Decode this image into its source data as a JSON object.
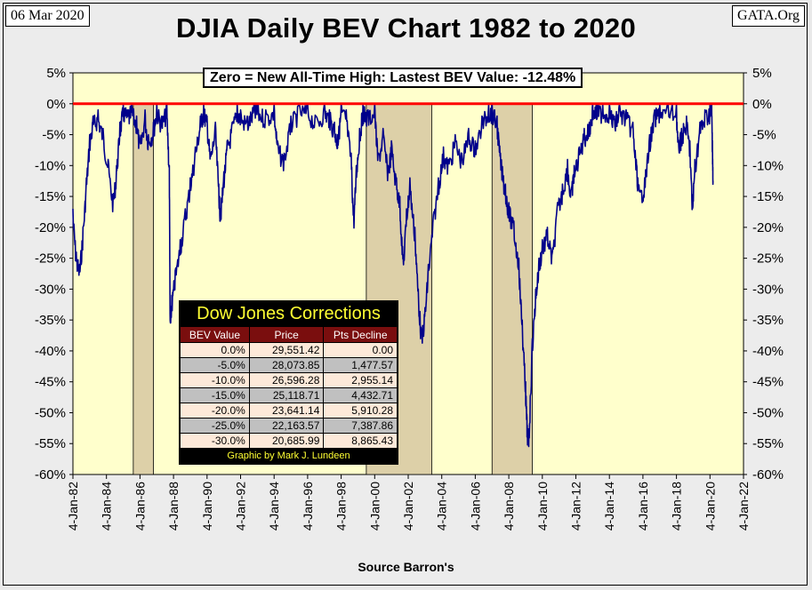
{
  "header": {
    "date": "06 Mar 2020",
    "site": "GATA.Org",
    "title": "DJIA Daily BEV Chart 1982 to 2020"
  },
  "annotation": "Zero = New All-Time High: Lastest BEV Value: -12.48%",
  "source": "Source Barron's",
  "colors": {
    "plot_bg": "#ffffcc",
    "line": "#00008b",
    "zero_line": "#ff0000",
    "shade": "#ddd0a8",
    "table_header": "#7a0e0e",
    "table_title": "#ffff33"
  },
  "corrections_table": {
    "title": "Dow Jones Corrections",
    "headers": [
      "BEV Value",
      "Price",
      "Pts Decline"
    ],
    "rows": [
      [
        "0.0%",
        "29,551.42",
        "0.00"
      ],
      [
        "-5.0%",
        "28,073.85",
        "1,477.57"
      ],
      [
        "-10.0%",
        "26,596.28",
        "2,955.14"
      ],
      [
        "-15.0%",
        "25,118.71",
        "4,432.71"
      ],
      [
        "-20.0%",
        "23,641.14",
        "5,910.28"
      ],
      [
        "-25.0%",
        "22,163.57",
        "7,387.86"
      ],
      [
        "-30.0%",
        "20,685.99",
        "8,865.43"
      ]
    ],
    "credit": "Graphic by Mark J. Lundeen"
  },
  "chart_data": {
    "type": "line",
    "title": "DJIA Daily BEV Chart 1982 to 2020",
    "xlabel": "Source Barron's",
    "ylabel": "",
    "ylim": [
      -60,
      5
    ],
    "xlim": [
      1982.0,
      2022.0
    ],
    "y_ticks": [
      "5%",
      "0%",
      "-5%",
      "-10%",
      "-15%",
      "-20%",
      "-25%",
      "-30%",
      "-35%",
      "-40%",
      "-45%",
      "-50%",
      "-55%",
      "-60%"
    ],
    "x_ticks": [
      "4-Jan-82",
      "4-Jan-84",
      "4-Jan-86",
      "4-Jan-88",
      "4-Jan-90",
      "4-Jan-92",
      "4-Jan-94",
      "4-Jan-96",
      "4-Jan-98",
      "4-Jan-00",
      "4-Jan-02",
      "4-Jan-04",
      "4-Jan-06",
      "4-Jan-08",
      "4-Jan-10",
      "4-Jan-12",
      "4-Jan-14",
      "4-Jan-16",
      "4-Jan-18",
      "4-Jan-20",
      "4-Jan-22"
    ],
    "shaded_periods": [
      [
        1985.6,
        1986.8
      ],
      [
        1999.5,
        2003.4
      ],
      [
        2007.0,
        2009.4
      ]
    ],
    "reference_line": 0,
    "series": [
      {
        "x": [
          1982.0,
          1982.2,
          1982.4,
          1982.6,
          1982.8,
          1983.0,
          1983.2,
          1983.5,
          1983.8,
          1984.1,
          1984.4,
          1984.6,
          1984.8,
          1985.0,
          1985.3,
          1985.5,
          1985.8,
          1986.0,
          1986.3,
          1986.5,
          1986.8,
          1987.0,
          1987.3,
          1987.6,
          1987.75,
          1987.8,
          1987.9,
          1988.1,
          1988.4,
          1988.7,
          1989.0,
          1989.3,
          1989.6,
          1989.8,
          1990.0,
          1990.2,
          1990.5,
          1990.7,
          1990.8,
          1991.0,
          1991.2,
          1991.5,
          1991.8,
          1992.0,
          1992.4,
          1992.8,
          1993.0,
          1993.5,
          1994.0,
          1994.2,
          1994.6,
          1995.0,
          1995.5,
          1996.0,
          1996.5,
          1997.0,
          1997.3,
          1997.6,
          1997.8,
          1998.0,
          1998.3,
          1998.6,
          1998.75,
          1998.9,
          1999.1,
          1999.3,
          1999.6,
          2000.0,
          2000.2,
          2000.5,
          2000.8,
          2001.0,
          2001.3,
          2001.5,
          2001.7,
          2001.9,
          2002.1,
          2002.4,
          2002.6,
          2002.8,
          2003.0,
          2003.2,
          2003.5,
          2003.8,
          2004.1,
          2004.4,
          2004.8,
          2005.2,
          2005.6,
          2006.0,
          2006.4,
          2006.8,
          2007.0,
          2007.3,
          2007.5,
          2007.8,
          2008.0,
          2008.3,
          2008.6,
          2008.8,
          2009.0,
          2009.1,
          2009.2,
          2009.4,
          2009.6,
          2009.8,
          2010.0,
          2010.3,
          2010.6,
          2010.9,
          2011.2,
          2011.5,
          2011.7,
          2011.9,
          2012.2,
          2012.5,
          2012.8,
          2013.0,
          2013.3,
          2013.6,
          2014.0,
          2014.3,
          2014.6,
          2015.0,
          2015.4,
          2015.6,
          2015.8,
          2016.1,
          2016.4,
          2016.7,
          2017.0,
          2017.5,
          2018.0,
          2018.1,
          2018.3,
          2018.6,
          2018.8,
          2018.95,
          2019.1,
          2019.4,
          2019.7,
          2020.0,
          2020.1,
          2020.15,
          2020.18
        ],
        "y": [
          -17,
          -24,
          -26,
          -20,
          -12,
          -5,
          -2,
          -1,
          -4,
          -9,
          -15,
          -10,
          -3,
          0,
          -1,
          0,
          -2,
          -6,
          -1,
          -5,
          -3,
          0,
          -2,
          0,
          -10,
          -35,
          -31,
          -27,
          -22,
          -17,
          -12,
          -7,
          -2,
          0,
          -2,
          -8,
          -3,
          -13,
          -17,
          -11,
          -6,
          -3,
          0,
          -1,
          -2,
          0,
          0,
          -1,
          0,
          -6,
          -8,
          -2,
          0,
          0,
          -2,
          0,
          -1,
          -3,
          -5,
          0,
          -1,
          -8,
          -18,
          -10,
          -4,
          0,
          -1,
          0,
          -8,
          -4,
          -10,
          -6,
          -12,
          -15,
          -25,
          -17,
          -12,
          -20,
          -30,
          -37,
          -33,
          -26,
          -18,
          -12,
          -7,
          -9,
          -5,
          -8,
          -4,
          -6,
          -2,
          0,
          0,
          -2,
          -8,
          -13,
          -16,
          -19,
          -25,
          -35,
          -45,
          -52,
          -53,
          -38,
          -30,
          -25,
          -22,
          -20,
          -24,
          -16,
          -13,
          -9,
          -14,
          -10,
          -7,
          -4,
          -3,
          0,
          0,
          0,
          0,
          -2,
          0,
          -1,
          -3,
          -9,
          -14,
          -12,
          -5,
          -1,
          0,
          0,
          0,
          -6,
          -4,
          -2,
          -6,
          -16,
          -9,
          -3,
          -1,
          0,
          0,
          -6,
          -12.48
        ]
      }
    ]
  }
}
